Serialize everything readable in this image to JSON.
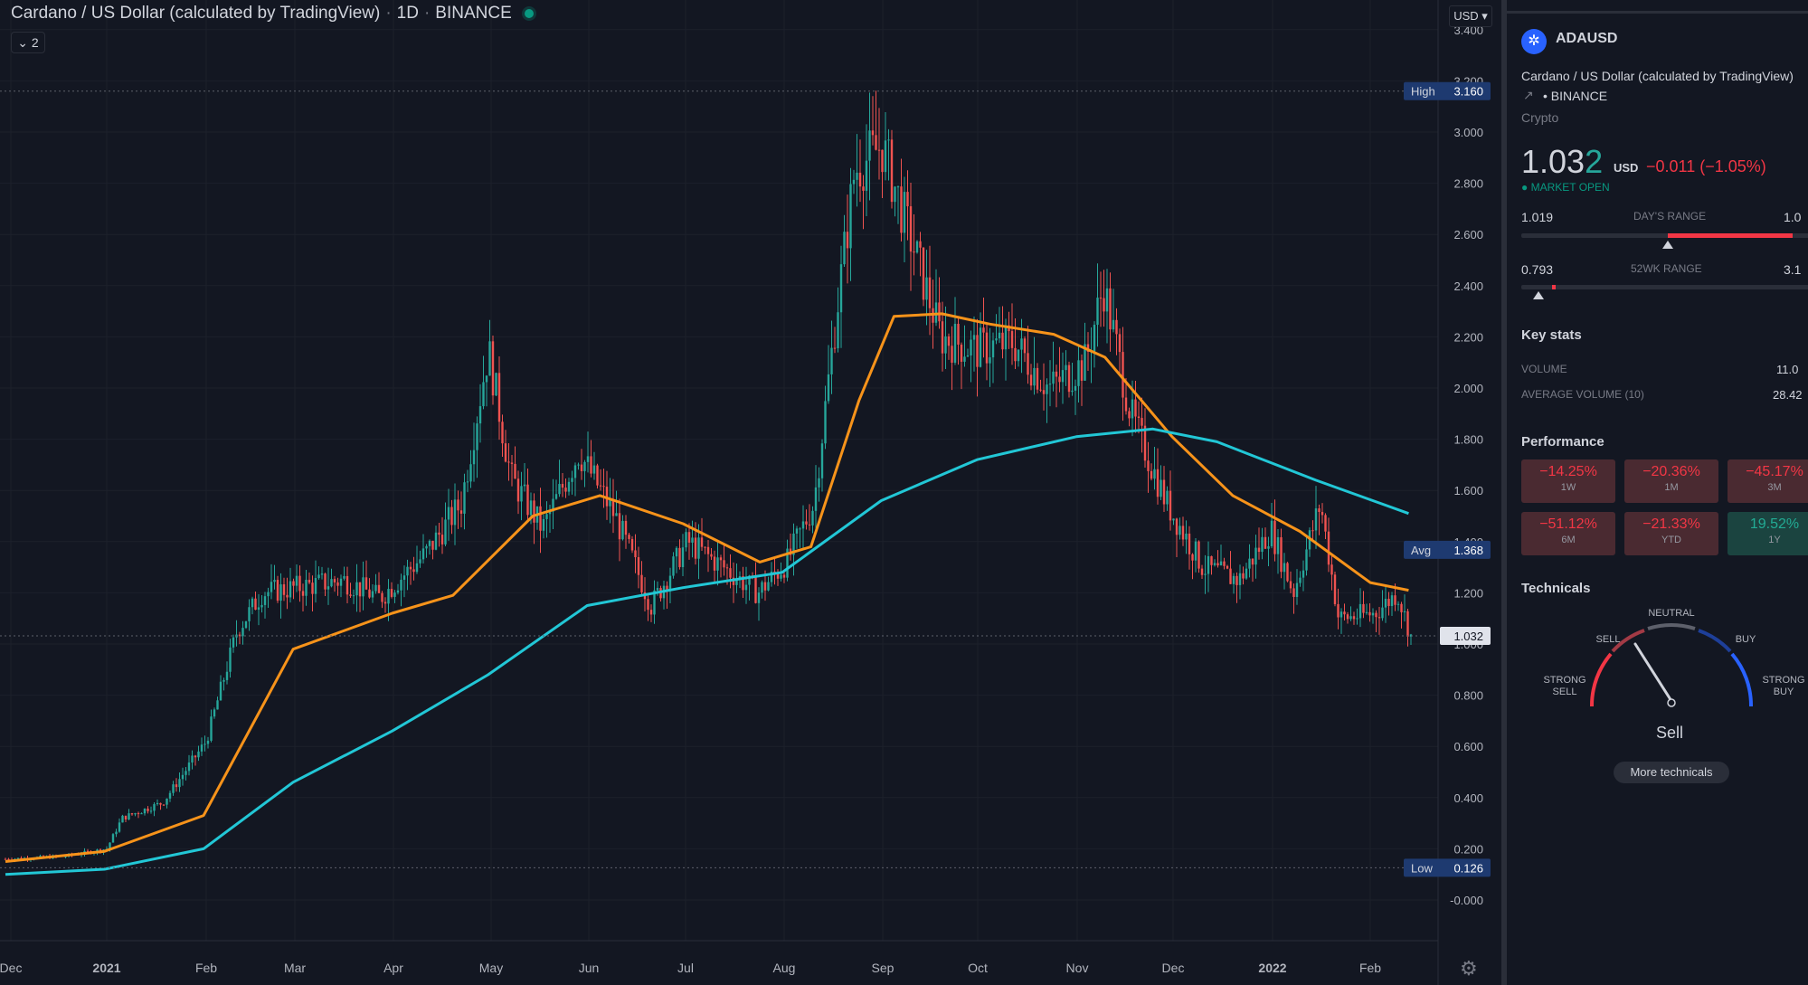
{
  "header": {
    "title": "Cardano / US Dollar (calculated by TradingView)",
    "interval": "1D",
    "exchange": "BINANCE",
    "collapse_label": "⌄ 2",
    "currency_button": "USD ▾"
  },
  "chart_data": {
    "type": "candlestick",
    "title": "Cardano / US Dollar (calculated by TradingView) · 1D · BINANCE",
    "x_ticks": [
      "Dec",
      "2021",
      "Feb",
      "Mar",
      "Apr",
      "May",
      "Jun",
      "Jul",
      "Aug",
      "Sep",
      "Oct",
      "Nov",
      "Dec",
      "2022",
      "Feb"
    ],
    "y_ticks": [
      "3.400",
      "3.200",
      "3.000",
      "2.800",
      "2.600",
      "2.400",
      "2.200",
      "2.000",
      "1.800",
      "1.600",
      "1.400",
      "1.200",
      "1.000",
      "0.800",
      "0.600",
      "0.400",
      "0.200",
      "-0.000"
    ],
    "ylim": [
      -0.1,
      3.45
    ],
    "series": [
      {
        "name": "ma_short",
        "color": "#f7931a",
        "x": [
          "2020-12-01",
          "2021-01-01",
          "2021-02-01",
          "2021-03-01",
          "2021-04-01",
          "2021-04-20",
          "2021-05-15",
          "2021-06-05",
          "2021-07-01",
          "2021-07-25",
          "2021-08-10",
          "2021-08-25",
          "2021-09-05",
          "2021-09-20",
          "2021-10-05",
          "2021-10-25",
          "2021-11-10",
          "2021-12-01",
          "2021-12-20",
          "2022-01-10",
          "2022-02-01",
          "2022-02-13"
        ],
        "values": [
          0.15,
          0.19,
          0.33,
          0.98,
          1.12,
          1.19,
          1.5,
          1.58,
          1.47,
          1.32,
          1.38,
          1.95,
          2.28,
          2.29,
          2.25,
          2.21,
          2.12,
          1.81,
          1.58,
          1.44,
          1.24,
          1.21
        ]
      },
      {
        "name": "ma_long",
        "color": "#22c7d6",
        "x": [
          "2020-12-01",
          "2021-01-01",
          "2021-02-01",
          "2021-03-01",
          "2021-04-01",
          "2021-05-01",
          "2021-06-01",
          "2021-07-01",
          "2021-08-01",
          "2021-09-01",
          "2021-10-01",
          "2021-11-01",
          "2021-11-25",
          "2021-12-15",
          "2022-01-15",
          "2022-02-13"
        ],
        "values": [
          0.1,
          0.12,
          0.2,
          0.46,
          0.66,
          0.88,
          1.15,
          1.22,
          1.28,
          1.56,
          1.72,
          1.81,
          1.84,
          1.79,
          1.64,
          1.51
        ]
      }
    ],
    "markers": {
      "high": {
        "label": "High",
        "value": "3.160"
      },
      "avg": {
        "label": "Avg",
        "value": "1.368"
      },
      "last": {
        "value": "1.032"
      },
      "low": {
        "label": "Low",
        "value": "0.126"
      }
    },
    "colors": {
      "up": "#26a69a",
      "down": "#ef5350"
    }
  },
  "panel": {
    "symbol": "ADAUSD",
    "description": "Cardano / US Dollar (calculated by TradingView)",
    "exchange": "• BINANCE",
    "category": "Crypto",
    "price_main": "1.03",
    "price_tail": "2",
    "price_unit": "USD",
    "price_change": "−0.011 (−1.05%)",
    "market_status": "● MARKET OPEN",
    "days_range": {
      "low": "1.019",
      "label": "DAY'S RANGE",
      "high": "1.0"
    },
    "wk52_range": {
      "low": "0.793",
      "label": "52WK RANGE",
      "high": "3.1"
    },
    "key_stats_title": "Key stats",
    "volume_label": "VOLUME",
    "volume_value": "11.0",
    "avg_volume_label": "AVERAGE VOLUME (10)",
    "avg_volume_value": "28.42",
    "performance_title": "Performance",
    "performance": [
      {
        "value": "−14.25%",
        "label": "1W",
        "sign": "neg"
      },
      {
        "value": "−20.36%",
        "label": "1M",
        "sign": "neg"
      },
      {
        "value": "−45.17%",
        "label": "3M",
        "sign": "neg"
      },
      {
        "value": "−51.12%",
        "label": "6M",
        "sign": "neg"
      },
      {
        "value": "−21.33%",
        "label": "YTD",
        "sign": "neg"
      },
      {
        "value": "19.52%",
        "label": "1Y",
        "sign": "pos"
      }
    ],
    "technicals_title": "Technicals",
    "gauge_labels": {
      "strong_sell": "STRONG\nSELL",
      "sell": "SELL",
      "neutral": "NEUTRAL",
      "buy": "BUY",
      "strong_buy": "STRONG\nBUY"
    },
    "technicals_result": "Sell",
    "more_technicals": "More technicals"
  }
}
